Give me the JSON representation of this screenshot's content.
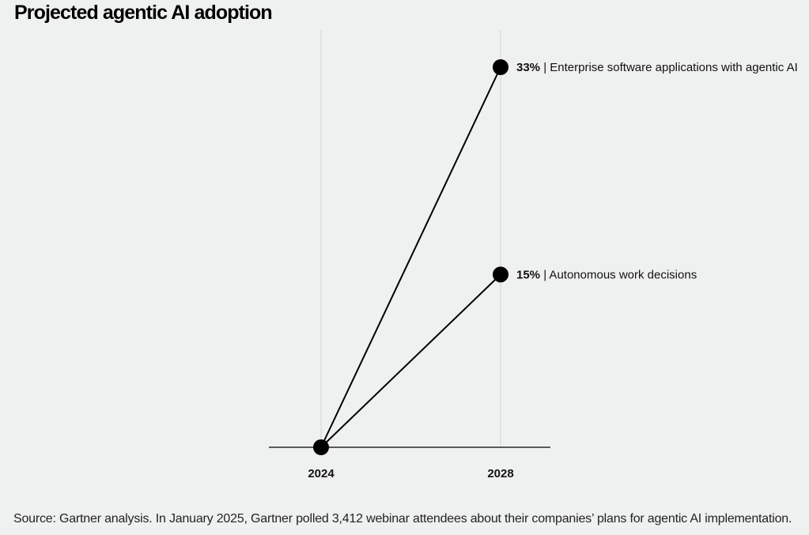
{
  "chart_data": {
    "type": "line",
    "title": "Projected agentic AI adoption",
    "categories": [
      "2024",
      "2028"
    ],
    "unit": "%",
    "ylim": [
      0,
      33
    ],
    "series": [
      {
        "name": "Enterprise software applications with agentic AI",
        "values": [
          0,
          33
        ],
        "label": "33%"
      },
      {
        "name": "Autonomous work decisions",
        "values": [
          0,
          15
        ],
        "label": "15%"
      }
    ],
    "grid": "vertical",
    "annotation_separator": " | ",
    "source": "Source: Gartner analysis. In January 2025, Gartner polled 3,412 webinar attendees about their companies’ plans for agentic AI implementation."
  },
  "colors": {
    "background": "#eff1f0",
    "line": "#000000",
    "gridline": "#d2d4d3"
  }
}
